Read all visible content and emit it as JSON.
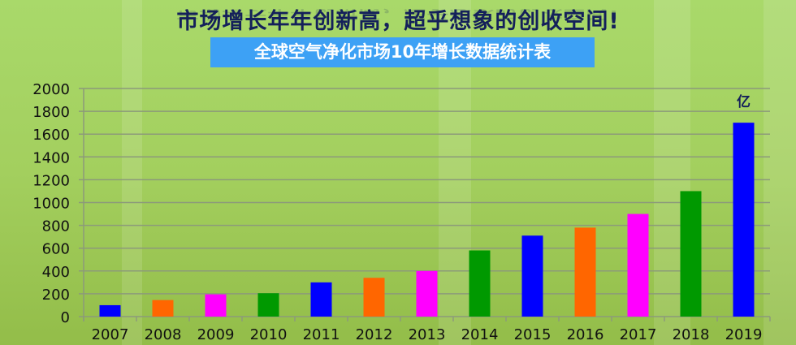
{
  "headline": "市场增长年年创新高，超乎想象的创收空间!",
  "chart_data": {
    "type": "bar",
    "title": "全球空气净化市场10年增长数据统计表",
    "unit_label": "亿",
    "categories": [
      "2007",
      "2008",
      "2009",
      "2010",
      "2011",
      "2012",
      "2013",
      "2014",
      "2015",
      "2016",
      "2017",
      "2018",
      "2019"
    ],
    "values": [
      100,
      145,
      195,
      205,
      300,
      340,
      400,
      580,
      710,
      780,
      900,
      1100,
      1700
    ],
    "colors": [
      "#0000ff",
      "#ff6600",
      "#ff00ff",
      "#009900",
      "#0000ff",
      "#ff6600",
      "#ff00ff",
      "#009900",
      "#0000ff",
      "#ff6600",
      "#ff00ff",
      "#009900",
      "#0000ff"
    ],
    "ylim": [
      0,
      2000
    ],
    "yticks": [
      0,
      200,
      400,
      600,
      800,
      1000,
      1200,
      1400,
      1600,
      1800,
      2000
    ],
    "grid": true,
    "legend": "none"
  }
}
